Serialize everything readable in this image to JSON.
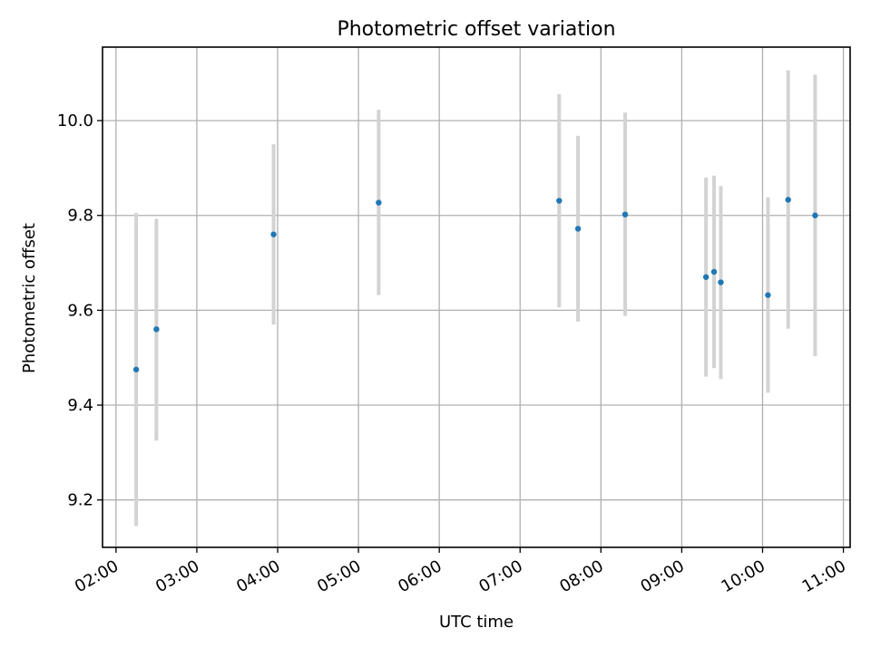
{
  "chart_data": {
    "type": "scatter",
    "title": "Photometric offset variation",
    "xlabel": "UTC time",
    "ylabel": "Photometric offset",
    "xlim": [
      "01:50",
      "11:05"
    ],
    "ylim": [
      9.1,
      10.155
    ],
    "grid": true,
    "x_tick_labels": [
      "02:00",
      "03:00",
      "04:00",
      "05:00",
      "06:00",
      "07:00",
      "08:00",
      "09:00",
      "10:00",
      "11:00"
    ],
    "y_tick_labels": [
      "9.2",
      "9.4",
      "9.6",
      "9.8",
      "10.0"
    ],
    "y_ticks": [
      9.2,
      9.4,
      9.6,
      9.8,
      10.0
    ],
    "series": [
      {
        "points": [
          {
            "x": "02:15",
            "y": 9.475,
            "yerr_low": 9.145,
            "yerr_high": 9.805
          },
          {
            "x": "02:30",
            "y": 9.56,
            "yerr_low": 9.325,
            "yerr_high": 9.793
          },
          {
            "x": "03:57",
            "y": 9.76,
            "yerr_low": 9.57,
            "yerr_high": 9.95
          },
          {
            "x": "05:15",
            "y": 9.827,
            "yerr_low": 9.632,
            "yerr_high": 10.023
          },
          {
            "x": "07:29",
            "y": 9.831,
            "yerr_low": 9.606,
            "yerr_high": 10.056
          },
          {
            "x": "07:43",
            "y": 9.772,
            "yerr_low": 9.576,
            "yerr_high": 9.968
          },
          {
            "x": "08:18",
            "y": 9.802,
            "yerr_low": 9.588,
            "yerr_high": 10.017
          },
          {
            "x": "09:18",
            "y": 9.67,
            "yerr_low": 9.46,
            "yerr_high": 9.88
          },
          {
            "x": "09:24",
            "y": 9.681,
            "yerr_low": 9.478,
            "yerr_high": 9.884
          },
          {
            "x": "09:29",
            "y": 9.659,
            "yerr_low": 9.455,
            "yerr_high": 9.862
          },
          {
            "x": "10:04",
            "y": 9.632,
            "yerr_low": 9.426,
            "yerr_high": 9.838
          },
          {
            "x": "10:19",
            "y": 9.833,
            "yerr_low": 9.561,
            "yerr_high": 10.106
          },
          {
            "x": "10:39",
            "y": 9.8,
            "yerr_low": 9.503,
            "yerr_high": 10.097
          }
        ]
      }
    ],
    "colors": {
      "marker": "#1f77b4",
      "errorbar": "#d3d3d3",
      "grid": "#b0b0b0",
      "axes": "#000000"
    }
  }
}
